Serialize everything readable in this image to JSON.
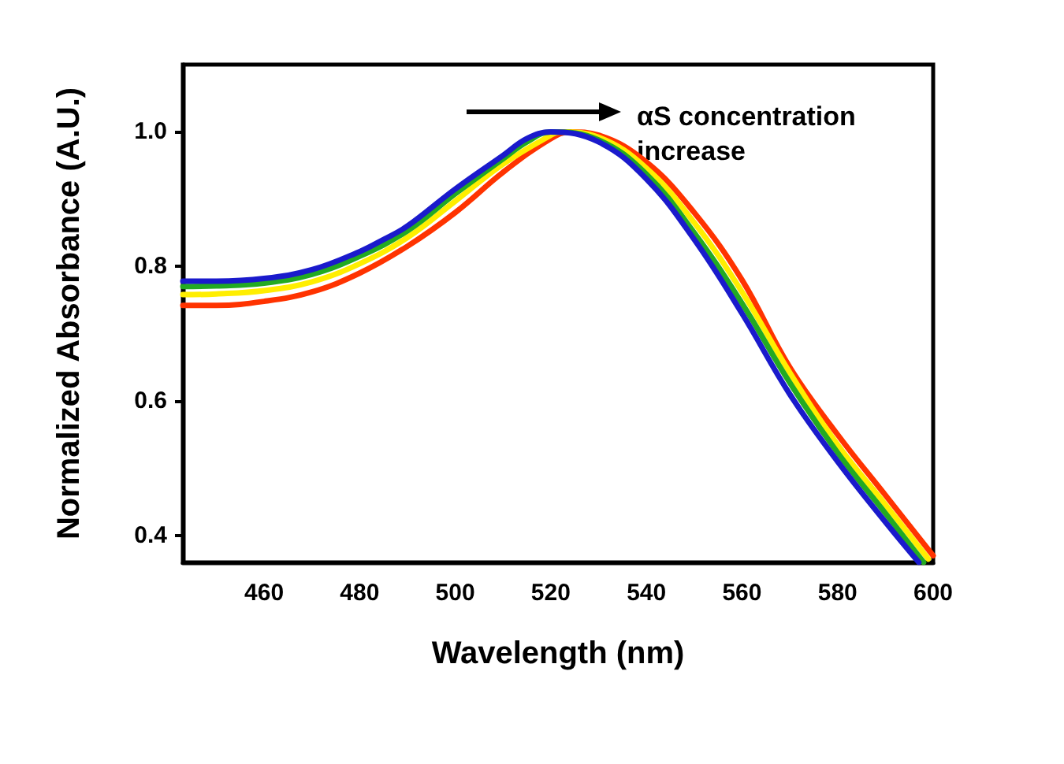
{
  "chart_data": {
    "type": "line",
    "xlabel": "Wavelength (nm)",
    "ylabel": "Normalized Absorbance (A.U.)",
    "annotations": [
      "αS concentration\nincrease"
    ],
    "xlim": [
      443,
      600
    ],
    "xticks": [
      460,
      480,
      500,
      520,
      540,
      560,
      580,
      600
    ],
    "ylim": [
      0.36,
      1.1
    ],
    "yticks": [
      0.4,
      0.6,
      0.8,
      {
        "value": 1,
        "label": "1.0"
      }
    ],
    "grid": false,
    "marker": "none",
    "line_style": "solid",
    "series": [
      {
        "color": "#ff3300",
        "x": [
          443,
          450,
          460,
          470,
          480,
          490,
          500,
          510,
          520,
          524,
          530,
          540,
          550,
          560,
          570,
          580,
          590,
          600
        ],
        "values": [
          0.742,
          0.742,
          0.748,
          0.762,
          0.79,
          0.83,
          0.88,
          0.94,
          0.99,
          1.0,
          0.995,
          0.955,
          0.88,
          0.78,
          0.65,
          0.55,
          0.46,
          0.37
        ]
      },
      {
        "color": "#ffee00",
        "x": [
          443,
          450,
          460,
          470,
          480,
          490,
          500,
          510,
          520,
          522,
          530,
          540,
          550,
          560,
          570,
          580,
          590,
          599
        ],
        "values": [
          0.758,
          0.759,
          0.764,
          0.777,
          0.804,
          0.843,
          0.897,
          0.952,
          0.995,
          1.0,
          0.992,
          0.946,
          0.865,
          0.762,
          0.642,
          0.535,
          0.446,
          0.365
        ]
      },
      {
        "color": "#22aa22",
        "x": [
          443,
          450,
          460,
          470,
          480,
          490,
          500,
          510,
          515,
          520,
          530,
          540,
          550,
          560,
          570,
          580,
          590,
          598
        ],
        "values": [
          0.77,
          0.771,
          0.775,
          0.788,
          0.815,
          0.853,
          0.908,
          0.96,
          0.985,
          1.0,
          0.988,
          0.937,
          0.85,
          0.745,
          0.627,
          0.523,
          0.433,
          0.36
        ]
      },
      {
        "color": "#1a1acc",
        "x": [
          443,
          450,
          460,
          470,
          480,
          485,
          490,
          500,
          510,
          515,
          520,
          530,
          540,
          550,
          560,
          570,
          580,
          590,
          597
        ],
        "values": [
          0.778,
          0.778,
          0.782,
          0.795,
          0.822,
          0.84,
          0.86,
          0.915,
          0.965,
          0.99,
          1.0,
          0.985,
          0.93,
          0.84,
          0.73,
          0.61,
          0.51,
          0.42,
          0.36
        ]
      }
    ]
  }
}
